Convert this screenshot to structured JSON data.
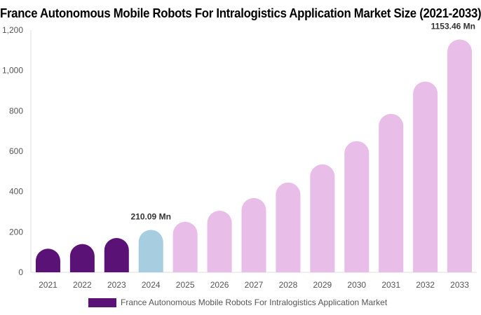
{
  "chart_data": {
    "type": "bar",
    "title": "France Autonomous Mobile Robots For Intralogistics Application Market Size (2021-2033)",
    "xlabel": "",
    "ylabel": "",
    "ylim": [
      0,
      1200
    ],
    "yticks": [
      "0",
      "200",
      "400",
      "600",
      "800",
      "1,000",
      "1,200"
    ],
    "ytick_values": [
      0,
      200,
      400,
      600,
      800,
      1000,
      1200
    ],
    "grid": false,
    "legend_position": "bottom",
    "categories": [
      "2021",
      "2022",
      "2023",
      "2024",
      "2025",
      "2026",
      "2027",
      "2028",
      "2029",
      "2030",
      "2031",
      "2032",
      "2033"
    ],
    "series": [
      {
        "name": "France Autonomous Mobile Robots For Intralogistics Application Market",
        "values": [
          117,
          140,
          170,
          210.09,
          250,
          305,
          368,
          445,
          535,
          650,
          785,
          945,
          1153.46
        ]
      }
    ],
    "bar_colors": [
      "#5a1276",
      "#5a1276",
      "#5a1276",
      "#a6cde0",
      "#e8bde8",
      "#e8bde8",
      "#e8bde8",
      "#e8bde8",
      "#e8bde8",
      "#e8bde8",
      "#e8bde8",
      "#e8bde8",
      "#e8bde8"
    ],
    "legend_color": "#5a1276",
    "data_labels": [
      {
        "index": 3,
        "text": "210.09 Mn"
      },
      {
        "index": 12,
        "text": "1153.46 Mn"
      }
    ]
  }
}
